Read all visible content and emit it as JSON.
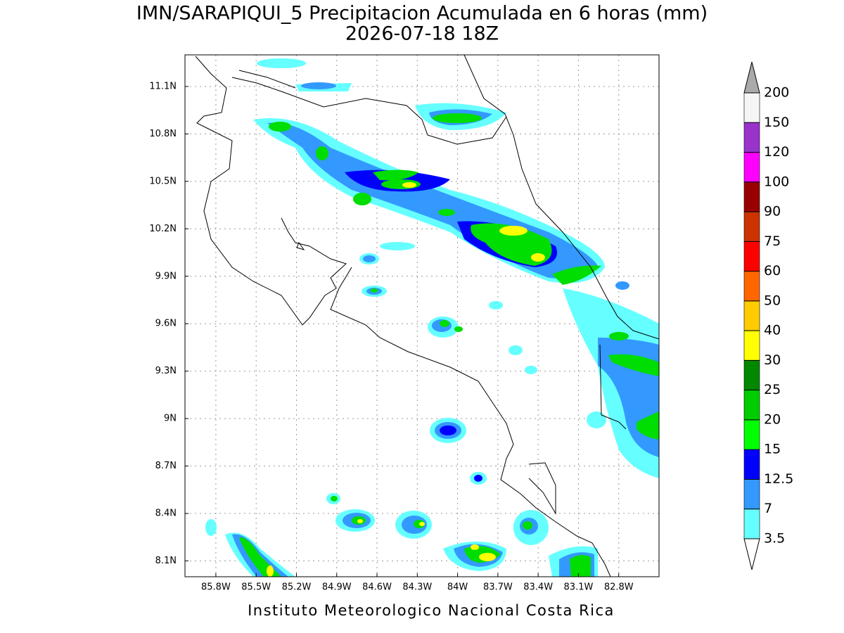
{
  "title": "IMN/SARAPIQUI_5 Precipitacion Acumulada en 6 horas (mm)",
  "subtitle": "2026-07-18 18Z",
  "credit": "Instituto Meteorologico Nacional Costa Rica",
  "map": {
    "xlim": [
      -86.03,
      -82.5
    ],
    "ylim": [
      8.0,
      11.3
    ],
    "xticks": [
      {
        "value": -85.8,
        "label": "85.8W"
      },
      {
        "value": -85.5,
        "label": "85.5W"
      },
      {
        "value": -85.2,
        "label": "85.2W"
      },
      {
        "value": -84.9,
        "label": "84.9W"
      },
      {
        "value": -84.6,
        "label": "84.6W"
      },
      {
        "value": -84.3,
        "label": "84.3W"
      },
      {
        "value": -84.0,
        "label": "84W"
      },
      {
        "value": -83.7,
        "label": "83.7W"
      },
      {
        "value": -83.4,
        "label": "83.4W"
      },
      {
        "value": -83.1,
        "label": "83.1W"
      },
      {
        "value": -82.8,
        "label": "82.8W"
      }
    ],
    "yticks": [
      {
        "value": 8.1,
        "label": "8.1N"
      },
      {
        "value": 8.4,
        "label": "8.4N"
      },
      {
        "value": 8.7,
        "label": "8.7N"
      },
      {
        "value": 9.0,
        "label": "9N"
      },
      {
        "value": 9.3,
        "label": "9.3N"
      },
      {
        "value": 9.6,
        "label": "9.6N"
      },
      {
        "value": 9.9,
        "label": "9.9N"
      },
      {
        "value": 10.2,
        "label": "10.2N"
      },
      {
        "value": 10.5,
        "label": "10.5N"
      },
      {
        "value": 10.8,
        "label": "10.8N"
      },
      {
        "value": 11.1,
        "label": "11.1N"
      }
    ],
    "grid": true
  },
  "colorbar": {
    "levels": [
      3.5,
      7,
      12.5,
      15,
      20,
      25,
      30,
      40,
      50,
      60,
      75,
      90,
      100,
      120,
      150,
      200
    ],
    "colors": [
      "#66ffff",
      "#3399ff",
      "#0000ff",
      "#00ff00",
      "#00cc00",
      "#008800",
      "#ffff00",
      "#ffcc00",
      "#ff6600",
      "#ff0000",
      "#cc3300",
      "#990000",
      "#ff00ff",
      "#9933cc",
      "#f5f5f5"
    ],
    "under_color": "#ffffff",
    "over_color": "#aaaaaa"
  }
}
